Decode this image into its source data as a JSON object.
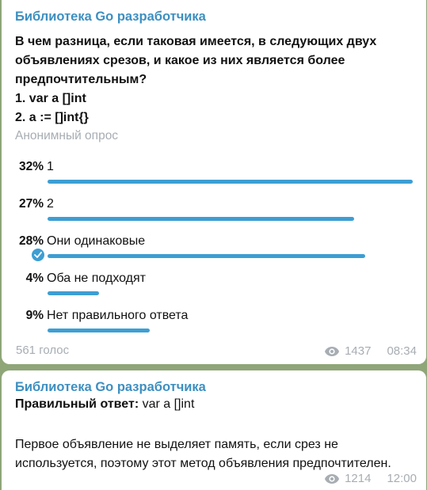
{
  "poll_message": {
    "channel": "Библиотека Go разработчика",
    "question_lines": [
      "В чем разница, если таковая имеется, в следующих двух",
      "объявлениях срезов, и какое из них является более",
      "предпочтительным?",
      "1. var a []int",
      "2. a := []int{}"
    ],
    "poll_type": "Анонимный опрос",
    "options": [
      {
        "percent": "32%",
        "label": "1",
        "fraction": 1.0,
        "chosen": false
      },
      {
        "percent": "27%",
        "label": "2",
        "fraction": 0.84,
        "chosen": false
      },
      {
        "percent": "28%",
        "label": "Они одинаковые",
        "fraction": 0.87,
        "chosen": true
      },
      {
        "percent": "4%",
        "label": "Оба не подходят",
        "fraction": 0.14,
        "chosen": false
      },
      {
        "percent": "9%",
        "label": "Нет правильного ответа",
        "fraction": 0.28,
        "chosen": false
      }
    ],
    "votes": "561 голос",
    "views": "1437",
    "time": "08:34"
  },
  "answer_message": {
    "channel": "Библиотека Go разработчика",
    "answer_label": "Правильный ответ:",
    "answer_value": "var a []int",
    "body_lines": [
      "Первое объявление не выделяет память, если срез не",
      "используется, поэтому этот метод объявления предпочтителен."
    ],
    "views": "1214",
    "time": "12:00"
  },
  "colors": {
    "accent": "#3d9ed3",
    "channel": "#3d8fc1",
    "muted": "#a7adb3",
    "background": "#8fa679"
  },
  "icons": {
    "views": "eye-icon",
    "chosen": "check-icon"
  }
}
